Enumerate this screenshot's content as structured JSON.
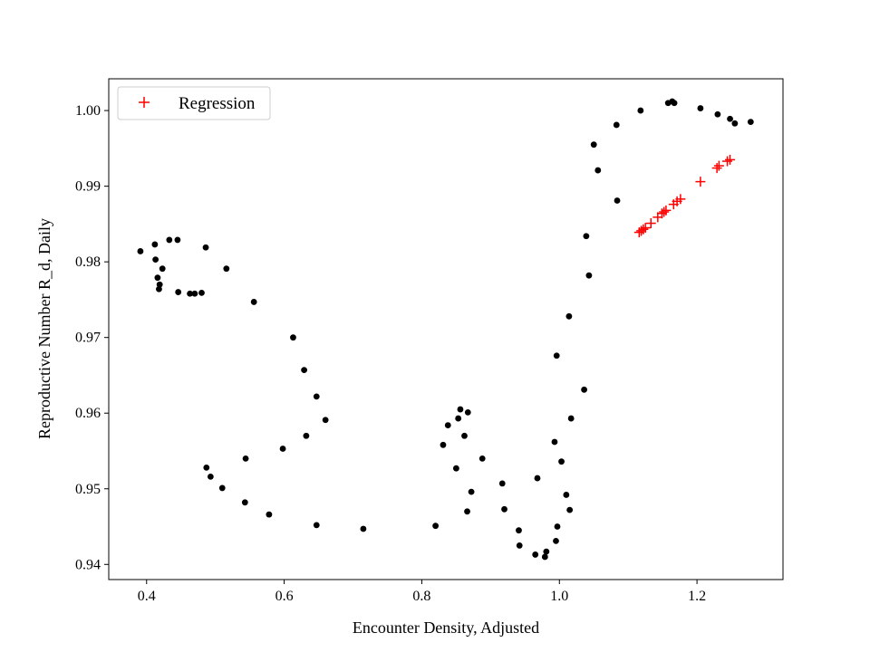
{
  "chart_data": {
    "type": "scatter",
    "xlabel": "Encounter Density, Adjusted",
    "ylabel": "Reproductive Number R_d, Daily",
    "xlim": [
      0.345,
      1.325
    ],
    "ylim": [
      0.938,
      1.0042
    ],
    "xticks": [
      0.4,
      0.6,
      0.8,
      1.0,
      1.2
    ],
    "xtick_labels": [
      "0.4",
      "0.6",
      "0.8",
      "1.0",
      "1.2"
    ],
    "yticks": [
      0.94,
      0.95,
      0.96,
      0.97,
      0.98,
      0.99,
      1.0
    ],
    "ytick_labels": [
      "0.94",
      "0.95",
      "0.96",
      "0.97",
      "0.98",
      "0.99",
      "1.00"
    ],
    "grid": false,
    "legend": {
      "placement": "top-left",
      "entries": [
        "Regression"
      ]
    },
    "series": [
      {
        "marker": "dot",
        "color": "#000000",
        "points": [
          [
            0.391,
            0.9814
          ],
          [
            0.412,
            0.9823
          ],
          [
            0.413,
            0.9803
          ],
          [
            0.416,
            0.9779
          ],
          [
            0.418,
            0.9764
          ],
          [
            0.419,
            0.977
          ],
          [
            0.423,
            0.9791
          ],
          [
            0.433,
            0.9829
          ],
          [
            0.445,
            0.9829
          ],
          [
            0.446,
            0.976
          ],
          [
            0.463,
            0.9758
          ],
          [
            0.47,
            0.9758
          ],
          [
            0.48,
            0.9759
          ],
          [
            0.486,
            0.9819
          ],
          [
            0.487,
            0.9528
          ],
          [
            0.493,
            0.9516
          ],
          [
            0.51,
            0.9501
          ],
          [
            0.516,
            0.9791
          ],
          [
            0.543,
            0.9482
          ],
          [
            0.544,
            0.954
          ],
          [
            0.556,
            0.9747
          ],
          [
            0.578,
            0.9466
          ],
          [
            0.598,
            0.9553
          ],
          [
            0.613,
            0.97
          ],
          [
            0.629,
            0.9657
          ],
          [
            0.632,
            0.957
          ],
          [
            0.647,
            0.9452
          ],
          [
            0.647,
            0.9622
          ],
          [
            0.66,
            0.9591
          ],
          [
            0.715,
            0.9447
          ],
          [
            0.82,
            0.9451
          ],
          [
            0.831,
            0.9558
          ],
          [
            0.838,
            0.9584
          ],
          [
            0.85,
            0.9527
          ],
          [
            0.853,
            0.9593
          ],
          [
            0.856,
            0.9605
          ],
          [
            0.862,
            0.957
          ],
          [
            0.866,
            0.947
          ],
          [
            0.867,
            0.9601
          ],
          [
            0.872,
            0.9496
          ],
          [
            0.888,
            0.954
          ],
          [
            0.917,
            0.9507
          ],
          [
            0.92,
            0.9473
          ],
          [
            0.941,
            0.9445
          ],
          [
            0.942,
            0.9425
          ],
          [
            0.965,
            0.9413
          ],
          [
            0.968,
            0.9514
          ],
          [
            0.979,
            0.941
          ],
          [
            0.981,
            0.9417
          ],
          [
            0.993,
            0.9562
          ],
          [
            0.995,
            0.9431
          ],
          [
            0.996,
            0.9676
          ],
          [
            0.997,
            0.945
          ],
          [
            1.003,
            0.9536
          ],
          [
            1.01,
            0.9492
          ],
          [
            1.014,
            0.9728
          ],
          [
            1.015,
            0.9472
          ],
          [
            1.017,
            0.9593
          ],
          [
            1.036,
            0.9631
          ],
          [
            1.039,
            0.9834
          ],
          [
            1.043,
            0.9782
          ],
          [
            1.05,
            0.9955
          ],
          [
            1.056,
            0.9921
          ],
          [
            1.083,
            0.9981
          ],
          [
            1.084,
            0.9881
          ],
          [
            1.118,
            1.0
          ],
          [
            1.158,
            1.001
          ],
          [
            1.164,
            1.0012
          ],
          [
            1.167,
            1.001
          ],
          [
            1.205,
            1.0003
          ],
          [
            1.23,
            0.9995
          ],
          [
            1.248,
            0.9989
          ],
          [
            1.255,
            0.9983
          ],
          [
            1.278,
            0.9985
          ]
        ]
      },
      {
        "name": "Regression",
        "marker": "plus",
        "color": "#ff0000",
        "points": [
          [
            1.116,
            0.9839
          ],
          [
            1.119,
            0.9841
          ],
          [
            1.122,
            0.9843
          ],
          [
            1.125,
            0.9845
          ],
          [
            1.133,
            0.9851
          ],
          [
            1.143,
            0.9859
          ],
          [
            1.149,
            0.9864
          ],
          [
            1.152,
            0.9866
          ],
          [
            1.155,
            0.9868
          ],
          [
            1.166,
            0.9876
          ],
          [
            1.171,
            0.988
          ],
          [
            1.176,
            0.9883
          ],
          [
            1.205,
            0.9906
          ],
          [
            1.229,
            0.9924
          ],
          [
            1.232,
            0.9927
          ],
          [
            1.244,
            0.9933
          ],
          [
            1.248,
            0.9935
          ]
        ]
      }
    ]
  }
}
